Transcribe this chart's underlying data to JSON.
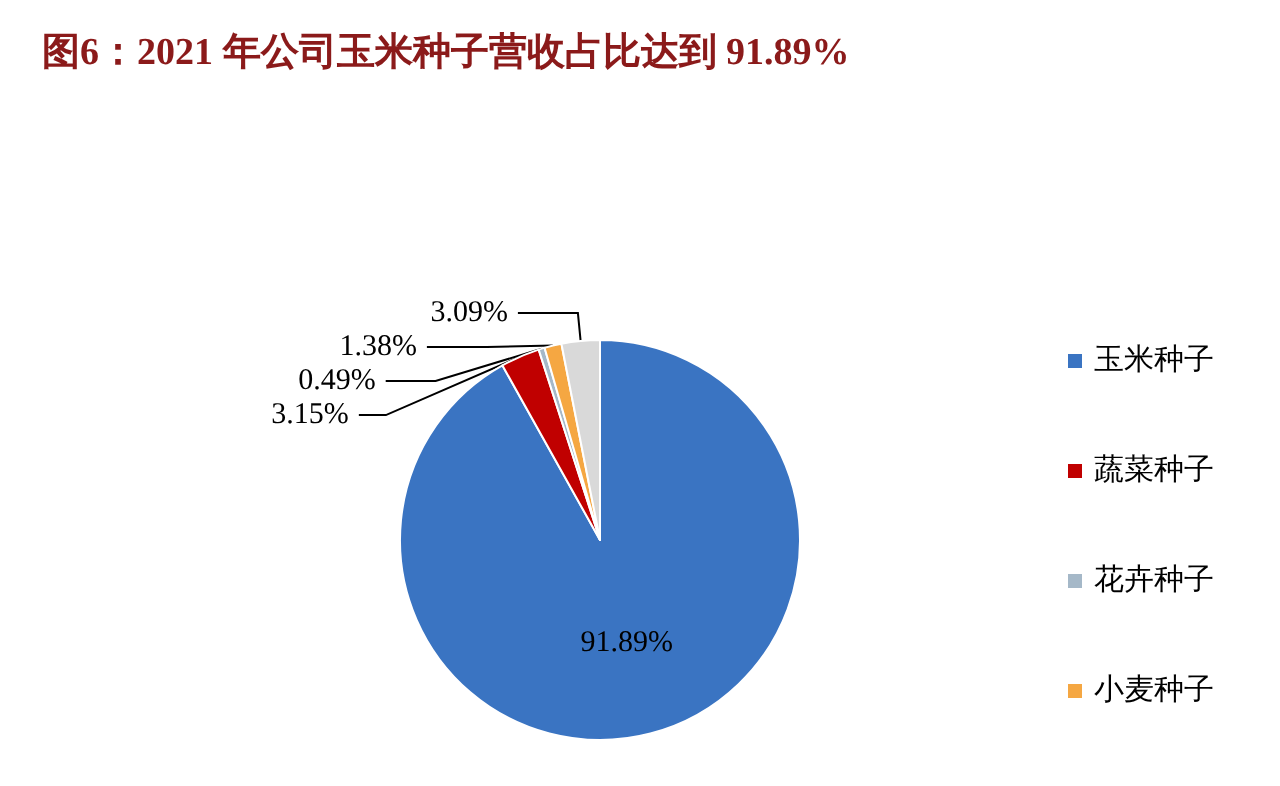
{
  "chart_data": {
    "type": "pie",
    "title": "图6：2021 年公司玉米种子营收占比达到 91.89%",
    "categories": [
      "玉米种子",
      "蔬菜种子",
      "花卉种子",
      "小麦种子",
      null
    ],
    "values": [
      91.89,
      3.15,
      0.49,
      1.38,
      3.09
    ],
    "value_labels": [
      "91.89%",
      "3.15%",
      "0.49%",
      "1.38%",
      "3.09%"
    ],
    "colors": [
      "#3a74c2",
      "#c00000",
      "#a5b8c8",
      "#f5a742",
      "#d9d9d9"
    ],
    "legend": "right"
  }
}
